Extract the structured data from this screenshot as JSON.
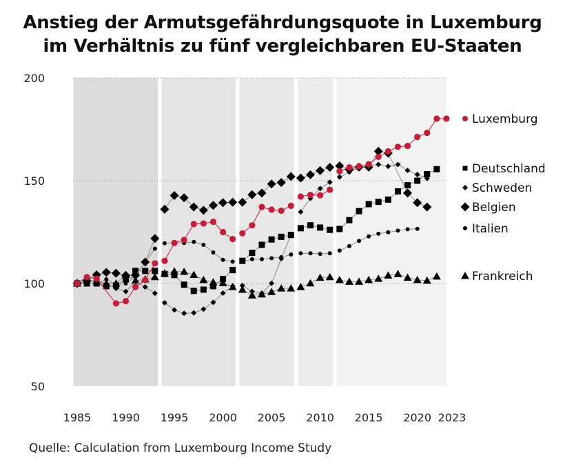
{
  "chart_data": {
    "type": "line",
    "title_lines": [
      "Anstieg der Armutsgefährdungsquote in Luxemburg",
      "im Verhältnis zu fünf vergleichbaren EU-Staaten"
    ],
    "source": "Quelle: Calculation from Luxembourg Income Study",
    "xlim": [
      1985,
      2023
    ],
    "ylim": [
      50,
      200
    ],
    "x_ticks": [
      "1985",
      "1990",
      "1995",
      "2000",
      "2005",
      "2010",
      "2015",
      "2020",
      "2023"
    ],
    "y_ticks": [
      "200",
      "150",
      "100",
      "50"
    ],
    "grid": "horizontal dotted",
    "legend_placement": "right",
    "x": [
      1985,
      1986,
      1987,
      1988,
      1989,
      1990,
      1991,
      1992,
      1993,
      1994,
      1995,
      1996,
      1997,
      1998,
      1999,
      2000,
      2001,
      2002,
      2003,
      2004,
      2005,
      2006,
      2007,
      2008,
      2009,
      2010,
      2011,
      2012,
      2013,
      2014,
      2015,
      2016,
      2017,
      2018,
      2019,
      2020,
      2021,
      2022,
      2023
    ],
    "series": [
      {
        "name": "Luxemburg",
        "marker": "circle",
        "color": "#c41e3a",
        "values": [
          100,
          103.1,
          102.3,
          null,
          90.3,
          91.4,
          98.3,
          101.7,
          109.8,
          111,
          119.7,
          121.2,
          128.9,
          129.2,
          130,
          125,
          121.6,
          124.4,
          128.3,
          137.2,
          135.9,
          135.4,
          137.8,
          142.3,
          143.1,
          142.9,
          145.6,
          154.6,
          156.5,
          157,
          158,
          161.6,
          164.3,
          166.5,
          166.9,
          171.3,
          173.3,
          180.2,
          180.2
        ]
      },
      {
        "name": "Deutschland",
        "marker": "square",
        "color": "#000000",
        "values": [
          100,
          100,
          100,
          98.7,
          99,
          102,
          106.1,
          106.1,
          106.1,
          104.6,
          104.1,
          99.4,
          96.4,
          97,
          98.7,
          102.2,
          106.5,
          111,
          114.9,
          118.8,
          121.4,
          122.7,
          123.6,
          126.9,
          128.3,
          127.2,
          126.1,
          126.5,
          130.8,
          135.2,
          138.6,
          139.7,
          140.8,
          144.8,
          147.8,
          150,
          153.2,
          155.6,
          null
        ]
      },
      {
        "name": "Schweden",
        "marker": "small-diamond",
        "color": "#000000",
        "values": [
          100,
          101,
          101,
          100,
          97.6,
          96.1,
          101,
          98.3,
          95.2,
          90.6,
          87.1,
          85.5,
          85.7,
          87.5,
          90.8,
          95.3,
          98.7,
          99,
          96.1,
          95.2,
          100.1,
          112.1,
          123.8,
          134.8,
          141.4,
          146.2,
          149.3,
          151.8,
          154.2,
          156.2,
          157.4,
          157.9,
          157,
          157.9,
          155,
          153,
          151.1,
          null,
          null
        ]
      },
      {
        "name": "Belgien",
        "marker": "diamond",
        "color": "#000000",
        "values": [
          100,
          101.4,
          104.2,
          105.4,
          105,
          103.9,
          104,
          110.4,
          121.9,
          136.1,
          142.8,
          141.7,
          137.2,
          135.6,
          138,
          139.3,
          139.5,
          139.5,
          143.2,
          144,
          148.4,
          149.1,
          152,
          151.3,
          152.9,
          154.9,
          156.5,
          157.2,
          155.4,
          156.6,
          156.6,
          164.3,
          163.4,
          null,
          144,
          139.3,
          137.2,
          null,
          null
        ]
      },
      {
        "name": "Italien",
        "marker": "small-circle",
        "color": "#000000",
        "values": [
          100,
          100,
          100,
          102,
          99.3,
          100,
          103.9,
          110.6,
          116.9,
          119.6,
          119.9,
          119.7,
          120.2,
          118.8,
          115.1,
          111.5,
          110.6,
          110.6,
          111.8,
          111.8,
          112.3,
          112.8,
          114.1,
          114.7,
          114.7,
          114.4,
          114.7,
          116,
          118.2,
          120.7,
          122.9,
          124.2,
          124.9,
          125.7,
          126.4,
          126.6,
          null,
          null,
          null
        ]
      },
      {
        "name": "Frankreich",
        "marker": "triangle",
        "color": "#000000",
        "values": [
          100,
          101.4,
          101,
          100,
          100,
          104.2,
          101.4,
          102,
          103.1,
          105,
          105.9,
          105.7,
          104.2,
          101.7,
          100.6,
          100.2,
          98.3,
          97,
          94.2,
          94.7,
          95.9,
          97.6,
          97.6,
          98.3,
          100.1,
          102.8,
          103.1,
          101.7,
          100.9,
          100.9,
          101.7,
          102.3,
          103.9,
          104.6,
          102.8,
          101.7,
          101.4,
          103.4,
          null
        ]
      }
    ]
  }
}
